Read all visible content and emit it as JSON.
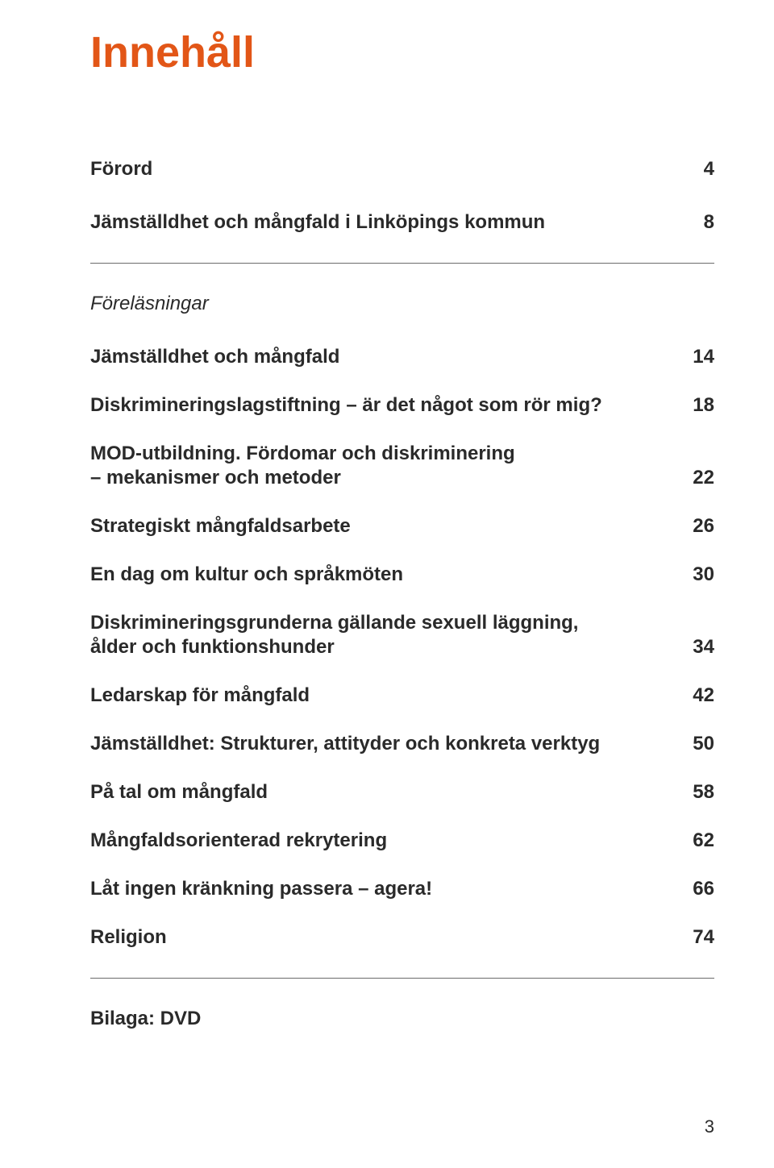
{
  "title": "Innehåll",
  "entries": {
    "forord": {
      "label": "Förord",
      "page": "4"
    },
    "jm_linkoping": {
      "label": "Jämställdhet och mångfald i Linköpings kommun",
      "page": "8"
    },
    "section_forelasningar": "Föreläsningar",
    "jm_mangfald": {
      "label": "Jämställdhet och mångfald",
      "page": "14"
    },
    "diskr_lag": {
      "label": "Diskrimineringslagstiftning – är det något som rör mig?",
      "page": "18"
    },
    "mod": {
      "line1": "MOD-utbildning. Fördomar och diskriminering",
      "line2": "– mekanismer och metoder",
      "page": "22"
    },
    "strategiskt": {
      "label": "Strategiskt mångfaldsarbete",
      "page": "26"
    },
    "kultur": {
      "label": "En dag om kultur och språkmöten",
      "page": "30"
    },
    "grunderna": {
      "line1": "Diskrimineringsgrunderna gällande sexuell läggning,",
      "line2": "ålder och funktionshunder",
      "page": "34"
    },
    "ledarskap": {
      "label": "Ledarskap för mångfald",
      "page": "42"
    },
    "strukturer": {
      "label": "Jämställdhet: Strukturer, attityder och konkreta verktyg",
      "page": "50"
    },
    "patal": {
      "label": "På tal om mångfald",
      "page": "58"
    },
    "rekrytering": {
      "label": "Mångfaldsorienterad rekrytering",
      "page": "62"
    },
    "krankning": {
      "label": "Låt ingen kränkning passera – agera!",
      "page": "66"
    },
    "religion": {
      "label": "Religion",
      "page": "74"
    },
    "bilaga": "Bilaga: DVD"
  },
  "page_number": "3",
  "colors": {
    "accent": "#e25617",
    "text": "#2a2a2a",
    "rule": "#6b6b6b",
    "background": "#ffffff"
  },
  "typography": {
    "title_fontsize_pt": 40,
    "body_fontsize_pt": 18,
    "body_weight": 700
  }
}
